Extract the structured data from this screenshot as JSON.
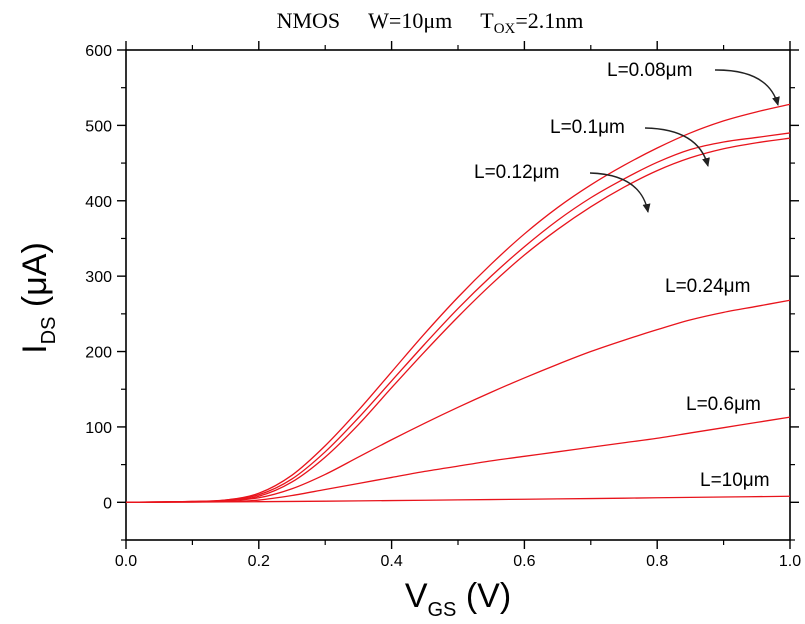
{
  "chart_data": {
    "type": "line",
    "title": {
      "part1": "NMOS",
      "part2": "W=10μm",
      "part3_main": "T",
      "part3_sub": "OX",
      "part3_rest": "=2.1nm"
    },
    "xlabel": {
      "main": "V",
      "sub": "GS",
      "rest": " (V)"
    },
    "ylabel": {
      "main": "I",
      "sub": "DS",
      "rest": " (μA)"
    },
    "xlim": [
      0.0,
      1.0
    ],
    "ylim": [
      -50,
      600
    ],
    "xticks": [
      0.0,
      0.2,
      0.4,
      0.6,
      0.8,
      1.0
    ],
    "xtick_labels": [
      "0.0",
      "0.2",
      "0.4",
      "0.6",
      "0.8",
      "1.0"
    ],
    "yticks": [
      0,
      100,
      200,
      300,
      400,
      500,
      600
    ],
    "ytick_labels": [
      "0",
      "100",
      "200",
      "300",
      "400",
      "500",
      "600"
    ],
    "line_color": "#e8141c",
    "series": [
      {
        "name": "L=0.08μm",
        "x": [
          0.0,
          0.1,
          0.15,
          0.2,
          0.25,
          0.3,
          0.35,
          0.4,
          0.45,
          0.5,
          0.55,
          0.6,
          0.65,
          0.7,
          0.75,
          0.8,
          0.85,
          0.9,
          0.95,
          1.0
        ],
        "y": [
          0,
          1,
          3,
          12,
          36,
          75,
          122,
          173,
          224,
          272,
          316,
          356,
          391,
          421,
          447,
          470,
          490,
          506,
          518,
          528
        ]
      },
      {
        "name": "L=0.1μm",
        "x": [
          0.0,
          0.1,
          0.15,
          0.2,
          0.25,
          0.3,
          0.35,
          0.4,
          0.45,
          0.5,
          0.55,
          0.6,
          0.65,
          0.7,
          0.75,
          0.8,
          0.85,
          0.9,
          0.95,
          1.0
        ],
        "y": [
          0,
          1,
          3,
          10,
          31,
          67,
          112,
          161,
          210,
          257,
          300,
          339,
          374,
          404,
          429,
          451,
          468,
          478,
          484,
          490
        ]
      },
      {
        "name": "L=0.12μm",
        "x": [
          0.0,
          0.1,
          0.15,
          0.2,
          0.25,
          0.3,
          0.35,
          0.4,
          0.45,
          0.5,
          0.55,
          0.6,
          0.65,
          0.7,
          0.75,
          0.8,
          0.85,
          0.9,
          0.95,
          1.0
        ],
        "y": [
          0,
          1,
          2,
          8,
          27,
          60,
          103,
          152,
          200,
          246,
          289,
          328,
          362,
          392,
          418,
          440,
          457,
          469,
          477,
          483
        ]
      },
      {
        "name": "L=0.24μm",
        "x": [
          0.0,
          0.1,
          0.15,
          0.2,
          0.25,
          0.3,
          0.35,
          0.4,
          0.45,
          0.5,
          0.55,
          0.6,
          0.65,
          0.7,
          0.75,
          0.8,
          0.85,
          0.9,
          0.95,
          1.0
        ],
        "y": [
          0,
          1,
          2,
          6,
          18,
          37,
          60,
          83,
          105,
          126,
          146,
          165,
          183,
          200,
          215,
          229,
          242,
          252,
          260,
          268
        ]
      },
      {
        "name": "L=0.6μm",
        "x": [
          0.0,
          0.1,
          0.15,
          0.2,
          0.25,
          0.3,
          0.35,
          0.4,
          0.45,
          0.5,
          0.55,
          0.6,
          0.65,
          0.7,
          0.75,
          0.8,
          0.85,
          0.9,
          0.95,
          1.0
        ],
        "y": [
          0,
          0.5,
          1,
          3,
          9,
          17,
          25,
          33,
          41,
          48,
          55,
          61,
          67,
          73,
          79,
          85,
          92,
          99,
          106,
          113
        ]
      },
      {
        "name": "L=10μm",
        "x": [
          0.0,
          0.1,
          0.2,
          0.3,
          0.4,
          0.5,
          0.6,
          0.7,
          0.8,
          0.9,
          1.0
        ],
        "y": [
          0,
          0.3,
          0.8,
          1.5,
          2.3,
          3.2,
          4.1,
          5.0,
          6.0,
          7.0,
          8.0
        ]
      }
    ],
    "annotations": [
      {
        "text": "L=0.08μm",
        "arrow": true,
        "target_series": 0
      },
      {
        "text": "L=0.1μm",
        "arrow": true,
        "target_series": 1
      },
      {
        "text": "L=0.12μm",
        "arrow": true,
        "target_series": 2
      },
      {
        "text": "L=0.24μm",
        "arrow": false,
        "target_series": 3
      },
      {
        "text": "L=0.6μm",
        "arrow": false,
        "target_series": 4
      },
      {
        "text": "L=10μm",
        "arrow": false,
        "target_series": 5
      }
    ],
    "grid": false,
    "legend": "none"
  }
}
